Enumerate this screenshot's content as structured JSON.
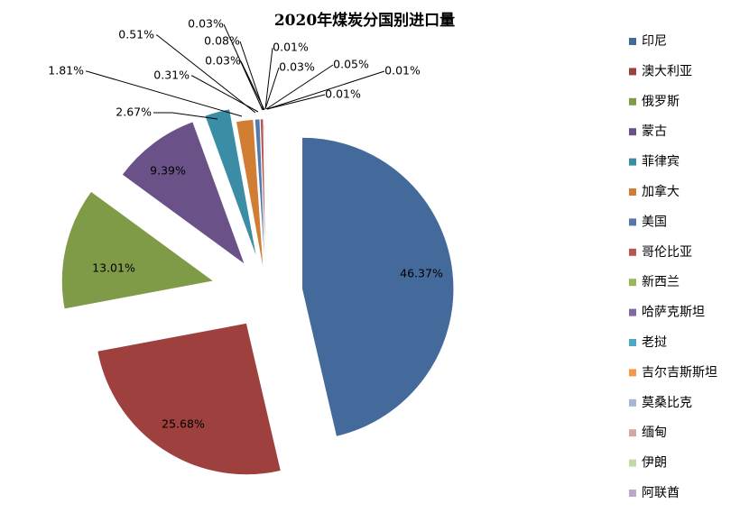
{
  "chart_data": {
    "type": "pie",
    "title": "2020年煤炭分国别进口量",
    "exploded": true,
    "legend_position": "right",
    "slices": [
      {
        "name": "印尼",
        "value": 46.37,
        "label": "46.37%",
        "color": "#44699b"
      },
      {
        "name": "澳大利亚",
        "value": 25.68,
        "label": "25.68%",
        "color": "#9e403d"
      },
      {
        "name": "俄罗斯",
        "value": 13.01,
        "label": "13.01%",
        "color": "#7f9b48"
      },
      {
        "name": "蒙古",
        "value": 9.39,
        "label": "9.39%",
        "color": "#6a5289"
      },
      {
        "name": "菲律宾",
        "value": 2.67,
        "label": "2.67%",
        "color": "#3a8da4"
      },
      {
        "name": "加拿大",
        "value": 1.81,
        "label": "1.81%",
        "color": "#d27d34"
      },
      {
        "name": "美国",
        "value": 0.51,
        "label": "0.51%",
        "color": "#5579ac"
      },
      {
        "name": "哥伦比亚",
        "value": 0.31,
        "label": "0.31%",
        "color": "#b65753"
      },
      {
        "name": "新西兰",
        "value": 0.03,
        "label": "0.03%",
        "color": "#99b958"
      },
      {
        "name": "哈萨克斯坦",
        "value": 0.08,
        "label": "0.08%",
        "color": "#8068a3"
      },
      {
        "name": "老挝",
        "value": 0.03,
        "label": "0.03%",
        "color": "#4aa9c4"
      },
      {
        "name": "吉尔吉斯斯坦",
        "value": 0.01,
        "label": "0.01%",
        "color": "#f79646"
      },
      {
        "name": "莫桑比克",
        "value": 0.03,
        "label": "0.03%",
        "color": "#a5b6d6"
      },
      {
        "name": "缅甸",
        "value": 0.05,
        "label": "0.05%",
        "color": "#d5a6a4"
      },
      {
        "name": "伊朗",
        "value": 0.01,
        "label": "0.01%",
        "color": "#c6d8a4"
      },
      {
        "name": "阿联酋",
        "value": 0.01,
        "label": "0.01%",
        "color": "#b9a9cc"
      }
    ]
  }
}
